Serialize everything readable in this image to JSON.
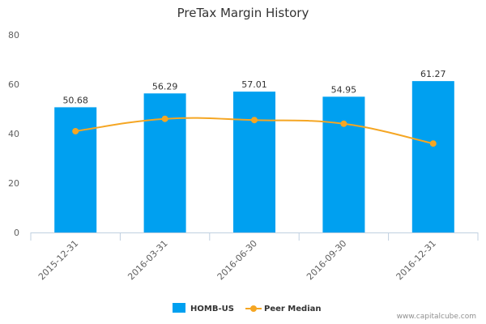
{
  "chart_data": {
    "type": "bar",
    "title": "PreTax Margin History",
    "categories": [
      "2015-12-31",
      "2016-03-31",
      "2016-06-30",
      "2016-09-30",
      "2016-12-31"
    ],
    "series": [
      {
        "name": "HOMB-US",
        "type": "bar",
        "color": "#00a0f0",
        "values": [
          50.68,
          56.29,
          57.01,
          54.95,
          61.27
        ],
        "labels": [
          "50.68",
          "56.29",
          "57.01",
          "54.95",
          "61.27"
        ]
      },
      {
        "name": "Peer Median",
        "type": "line",
        "color": "#f5a623",
        "values": [
          41,
          46,
          45.5,
          44,
          36
        ]
      }
    ],
    "ylim": [
      0,
      80
    ],
    "yticks": [
      "0",
      "20",
      "40",
      "60",
      "80"
    ],
    "xlabel": "",
    "ylabel": "",
    "grid": false,
    "legend": "bottom-center"
  },
  "credit": "www.capitalcube.com"
}
